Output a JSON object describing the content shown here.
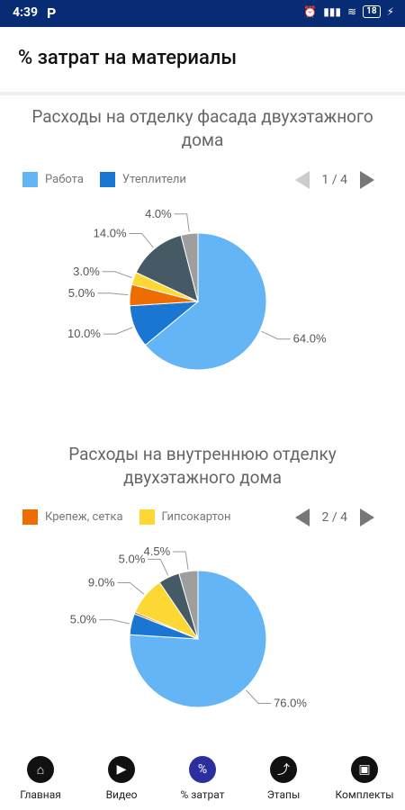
{
  "status": {
    "time": "4:39",
    "battery": "18"
  },
  "appbar": {
    "title": "% затрат на материалы"
  },
  "chart1": {
    "title_line1": "Расходы на отделку фасада двухэтажного",
    "title_line2": "дома",
    "legend": [
      {
        "label": "Работа",
        "color": "#64b5f6"
      },
      {
        "label": "Утеплители",
        "color": "#1976d2"
      }
    ],
    "pager": "1 / 4"
  },
  "chart2": {
    "title_line1": "Расходы на внутреннюю отделку",
    "title_line2": "двухэтажного дома",
    "legend": [
      {
        "label": "Крепеж, сетка",
        "color": "#ef6c00"
      },
      {
        "label": "Гипсокартон",
        "color": "#fdd835"
      }
    ],
    "pager": "2 / 4"
  },
  "chart_data": [
    {
      "type": "pie",
      "title": "Расходы на отделку фасада двухэтажного дома",
      "slices": [
        {
          "label": "Работа",
          "value": 64.0,
          "color": "#64b5f6"
        },
        {
          "label": "Утеплители",
          "value": 10.0,
          "color": "#1976d2"
        },
        {
          "label": "",
          "value": 5.0,
          "color": "#ef6c00"
        },
        {
          "label": "",
          "value": 3.0,
          "color": "#fdd835"
        },
        {
          "label": "",
          "value": 14.0,
          "color": "#455a64"
        },
        {
          "label": "",
          "value": 4.0,
          "color": "#9e9e9e"
        }
      ]
    },
    {
      "type": "pie",
      "title": "Расходы на внутреннюю отделку двухэтажного дома",
      "slices": [
        {
          "label": "",
          "value": 76.0,
          "color": "#64b5f6"
        },
        {
          "label": "",
          "value": 5.0,
          "color": "#1976d2"
        },
        {
          "label": "Крепеж, сетка",
          "value": 0.5,
          "color": "#ef6c00"
        },
        {
          "label": "Гипсокартон",
          "value": 9.0,
          "color": "#fdd835"
        },
        {
          "label": "",
          "value": 5.0,
          "color": "#455a64"
        },
        {
          "label": "",
          "value": 4.5,
          "color": "#9e9e9e"
        }
      ]
    }
  ],
  "nav": [
    {
      "label": "Главная",
      "icon": "home-icon"
    },
    {
      "label": "Видео",
      "icon": "video-icon"
    },
    {
      "label": "% затрат",
      "icon": "percent-icon"
    },
    {
      "label": "Этапы",
      "icon": "stairs-icon"
    },
    {
      "label": "Комплекты",
      "icon": "box-icon"
    }
  ]
}
